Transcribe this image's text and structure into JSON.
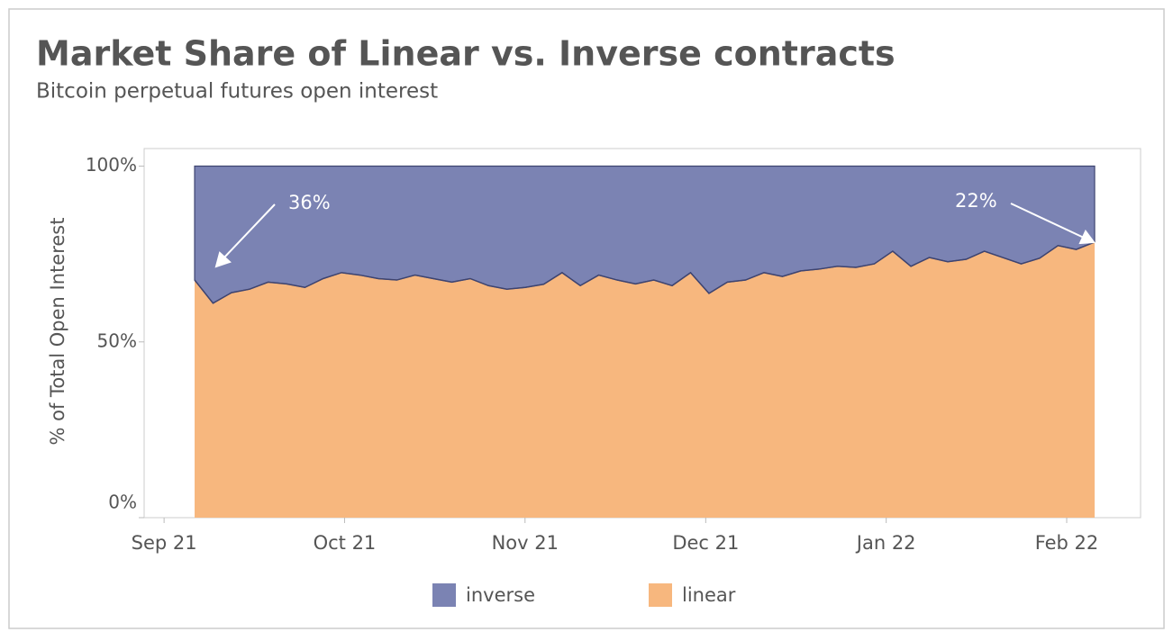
{
  "chart_data": {
    "type": "stacked_area",
    "title": "Market Share of Linear vs. Inverse contracts",
    "subtitle": "Bitcoin perpetual futures open interest",
    "y_label": "% of Total Open Interest",
    "x": [
      2021.6808,
      2021.6893,
      2021.6978,
      2021.7062,
      2021.7147,
      2021.7232,
      2021.7317,
      2021.7401,
      2021.7486,
      2021.7571,
      2021.7656,
      2021.7741,
      2021.7825,
      2021.791,
      2021.7995,
      2021.808,
      2021.8164,
      2021.8249,
      2021.8334,
      2021.8419,
      2021.8504,
      2021.8588,
      2021.8673,
      2021.8758,
      2021.8843,
      2021.8927,
      2021.9012,
      2021.9097,
      2021.9182,
      2021.9267,
      2021.9351,
      2021.9436,
      2021.9521,
      2021.9606,
      2021.969,
      2021.9775,
      2021.986,
      2021.9945,
      2022.003,
      2022.0114,
      2022.0199,
      2022.0284,
      2022.0369,
      2022.0453,
      2022.0538,
      2022.0623,
      2022.0708,
      2022.0793,
      2022.0877,
      2022.0962
    ],
    "series": [
      {
        "name": "inverse",
        "color": "#7b83b3",
        "values": [
          32.4,
          39,
          36,
          35,
          33,
          33.5,
          34.5,
          32,
          30.3,
          31,
          32,
          32.4,
          31,
          32,
          33,
          32,
          34,
          35,
          34.5,
          33.6,
          30.3,
          34,
          31,
          32.4,
          33.5,
          32.4,
          34,
          30.3,
          36.2,
          33,
          32.4,
          30.3,
          31.4,
          29.8,
          29.3,
          28.5,
          28.8,
          27.8,
          24.2,
          28.5,
          26,
          27.2,
          26.5,
          24.2,
          26,
          27.8,
          26.2,
          22.6,
          23.7,
          21.6
        ]
      },
      {
        "name": "linear",
        "color": "#f7b77e",
        "values": [
          67.6,
          61,
          64,
          65,
          67,
          66.5,
          65.5,
          68,
          69.7,
          69,
          68,
          67.6,
          69,
          68,
          67,
          68,
          66,
          65,
          65.5,
          66.4,
          69.7,
          66,
          69,
          67.6,
          66.5,
          67.6,
          66,
          69.7,
          63.8,
          67,
          67.6,
          69.7,
          68.6,
          70.2,
          70.7,
          71.5,
          71.2,
          72.2,
          75.8,
          71.5,
          74,
          72.8,
          73.5,
          75.8,
          74,
          72.2,
          73.8,
          77.4,
          76.3,
          78.4
        ]
      }
    ],
    "xlim": [
      2021.6575,
      2022.1174
    ],
    "xticks": [
      {
        "value": 2021.6667,
        "label": "Sep 21"
      },
      {
        "value": 2021.75,
        "label": "Oct 21"
      },
      {
        "value": 2021.8333,
        "label": "Nov 21"
      },
      {
        "value": 2021.9167,
        "label": "Dec 21"
      },
      {
        "value": 2022.0,
        "label": "Jan 22"
      },
      {
        "value": 2022.0833,
        "label": "Feb 22"
      }
    ],
    "ylim": [
      0,
      105
    ],
    "yticks": [
      {
        "value": 0,
        "label": "0%"
      },
      {
        "value": 50,
        "label": "50%"
      },
      {
        "value": 100,
        "label": "100%"
      }
    ],
    "annotations": [
      "36%",
      "22%"
    ],
    "legend": "bottom"
  }
}
